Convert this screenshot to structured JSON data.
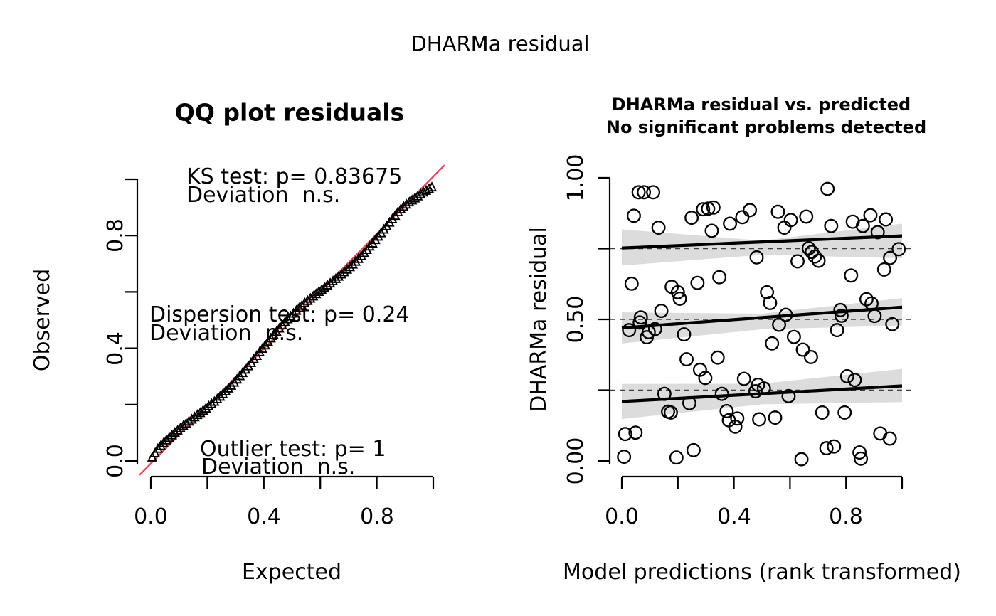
{
  "figure": {
    "title": "DHARMa residual",
    "background_color": "#ffffff",
    "text_color": "#000000"
  },
  "panels": {
    "qq": {
      "title": "QQ plot residuals",
      "xlabel": "Expected",
      "ylabel": "Observed",
      "x_tick_labels": [
        "0.0",
        "0.4",
        "0.8"
      ],
      "y_tick_labels": [
        "0.0",
        "0.4",
        "0.8"
      ],
      "ref_line_color": "#e8465f",
      "annotations": {
        "ks_line1": "KS test: p= 0.83675",
        "ks_line2": "Deviation  n.s.",
        "dispersion_line1": "Dispersion test: p= 0.24",
        "dispersion_line2": "Deviation  n.s.",
        "outlier_line1": "Outlier test: p= 1",
        "outlier_line2": "Deviation  n.s."
      }
    },
    "residual": {
      "title_line1": "DHARMa residual vs. predicted",
      "title_line2": "No significant problems detected",
      "xlabel": "Model predictions (rank transformed)",
      "ylabel": "DHARMa residual",
      "x_tick_labels": [
        "0.0",
        "0.4",
        "0.8"
      ],
      "y_tick_labels": [
        "0.00",
        "0.50",
        "1.00"
      ],
      "band_color": "#dcdcdc",
      "quantile_line_color": "#000000",
      "dashed_line_color": "#404040"
    }
  },
  "chart_data": [
    {
      "type": "scatter",
      "panel": "qq",
      "title": "QQ plot residuals",
      "xlabel": "Expected",
      "ylabel": "Observed",
      "xlim": [
        0,
        1
      ],
      "ylim": [
        0,
        1
      ],
      "x_ticks": [
        0,
        0.2,
        0.4,
        0.6,
        0.8,
        1.0
      ],
      "y_ticks": [
        0,
        0.2,
        0.4,
        0.6,
        0.8,
        1.0
      ],
      "labeled_x_ticks": [
        0.0,
        0.4,
        0.8
      ],
      "labeled_y_ticks": [
        0.0,
        0.4,
        0.8
      ],
      "marker": "open-triangle",
      "reference_line": {
        "from": [
          -0.04,
          -0.05
        ],
        "to": [
          1.04,
          1.05
        ],
        "color": "#e8465f"
      },
      "tests": {
        "ks_p": 0.83675,
        "dispersion_p": 0.24,
        "outlier_p": 1,
        "deviation": "n.s."
      },
      "points": [
        [
          0.005,
          0.012
        ],
        [
          0.015,
          0.027
        ],
        [
          0.025,
          0.043
        ],
        [
          0.035,
          0.053
        ],
        [
          0.045,
          0.063
        ],
        [
          0.055,
          0.073
        ],
        [
          0.065,
          0.082
        ],
        [
          0.075,
          0.091
        ],
        [
          0.085,
          0.1
        ],
        [
          0.095,
          0.108
        ],
        [
          0.105,
          0.116
        ],
        [
          0.115,
          0.124
        ],
        [
          0.125,
          0.132
        ],
        [
          0.135,
          0.14
        ],
        [
          0.145,
          0.147
        ],
        [
          0.155,
          0.155
        ],
        [
          0.165,
          0.163
        ],
        [
          0.175,
          0.17
        ],
        [
          0.185,
          0.178
        ],
        [
          0.195,
          0.186
        ],
        [
          0.205,
          0.194
        ],
        [
          0.215,
          0.202
        ],
        [
          0.225,
          0.21
        ],
        [
          0.235,
          0.219
        ],
        [
          0.245,
          0.228
        ],
        [
          0.255,
          0.237
        ],
        [
          0.265,
          0.247
        ],
        [
          0.275,
          0.257
        ],
        [
          0.285,
          0.267
        ],
        [
          0.295,
          0.278
        ],
        [
          0.305,
          0.289
        ],
        [
          0.315,
          0.301
        ],
        [
          0.325,
          0.312
        ],
        [
          0.335,
          0.324
        ],
        [
          0.345,
          0.336
        ],
        [
          0.355,
          0.348
        ],
        [
          0.365,
          0.361
        ],
        [
          0.375,
          0.373
        ],
        [
          0.385,
          0.386
        ],
        [
          0.395,
          0.398
        ],
        [
          0.405,
          0.41
        ],
        [
          0.415,
          0.423
        ],
        [
          0.425,
          0.435
        ],
        [
          0.435,
          0.447
        ],
        [
          0.445,
          0.458
        ],
        [
          0.455,
          0.47
        ],
        [
          0.465,
          0.481
        ],
        [
          0.475,
          0.492
        ],
        [
          0.485,
          0.503
        ],
        [
          0.495,
          0.513
        ],
        [
          0.505,
          0.523
        ],
        [
          0.515,
          0.533
        ],
        [
          0.525,
          0.542
        ],
        [
          0.535,
          0.551
        ],
        [
          0.545,
          0.56
        ],
        [
          0.555,
          0.568
        ],
        [
          0.565,
          0.576
        ],
        [
          0.575,
          0.584
        ],
        [
          0.585,
          0.592
        ],
        [
          0.595,
          0.6
        ],
        [
          0.605,
          0.607
        ],
        [
          0.615,
          0.615
        ],
        [
          0.625,
          0.623
        ],
        [
          0.635,
          0.63
        ],
        [
          0.645,
          0.638
        ],
        [
          0.655,
          0.646
        ],
        [
          0.665,
          0.654
        ],
        [
          0.675,
          0.662
        ],
        [
          0.685,
          0.67
        ],
        [
          0.695,
          0.679
        ],
        [
          0.705,
          0.688
        ],
        [
          0.715,
          0.697
        ],
        [
          0.725,
          0.707
        ],
        [
          0.735,
          0.717
        ],
        [
          0.745,
          0.727
        ],
        [
          0.755,
          0.738
        ],
        [
          0.765,
          0.749
        ],
        [
          0.775,
          0.761
        ],
        [
          0.785,
          0.772
        ],
        [
          0.795,
          0.784
        ],
        [
          0.805,
          0.796
        ],
        [
          0.815,
          0.808
        ],
        [
          0.825,
          0.821
        ],
        [
          0.835,
          0.833
        ],
        [
          0.845,
          0.846
        ],
        [
          0.855,
          0.858
        ],
        [
          0.865,
          0.87
        ],
        [
          0.875,
          0.883
        ],
        [
          0.885,
          0.893
        ],
        [
          0.895,
          0.902
        ],
        [
          0.905,
          0.91
        ],
        [
          0.915,
          0.918
        ],
        [
          0.925,
          0.925
        ],
        [
          0.935,
          0.932
        ],
        [
          0.945,
          0.939
        ],
        [
          0.955,
          0.946
        ],
        [
          0.965,
          0.953
        ],
        [
          0.975,
          0.959
        ],
        [
          0.985,
          0.965
        ],
        [
          0.995,
          0.971
        ]
      ]
    },
    {
      "type": "scatter",
      "panel": "residual",
      "title": "DHARMa residual vs. predicted",
      "subtitle": "No significant problems detected",
      "xlabel": "Model predictions (rank transformed)",
      "ylabel": "DHARMa residual",
      "xlim": [
        0,
        1
      ],
      "ylim": [
        0,
        1
      ],
      "x_ticks": [
        0,
        0.2,
        0.4,
        0.6,
        0.8,
        1.0
      ],
      "y_ticks": [
        0,
        0.25,
        0.5,
        0.75,
        1.0
      ],
      "labeled_x_ticks": [
        0.0,
        0.4,
        0.8
      ],
      "labeled_y_ticks": [
        0.0,
        0.5,
        1.0
      ],
      "marker": "open-circle",
      "dashed_hlines": [
        0.25,
        0.5,
        0.75
      ],
      "quantile_lines": [
        {
          "q": 0.75,
          "start": 0.752,
          "end": 0.795
        },
        {
          "q": 0.5,
          "start": 0.47,
          "end": 0.543
        },
        {
          "q": 0.25,
          "start": 0.21,
          "end": 0.265
        }
      ],
      "confidence_bands": [
        {
          "q": 0.75,
          "top": [
            [
              0,
              0.818
            ],
            [
              0.5,
              0.778
            ],
            [
              1,
              0.838
            ]
          ],
          "bottom": [
            [
              0,
              0.69
            ],
            [
              0.5,
              0.728
            ],
            [
              1,
              0.716
            ]
          ]
        },
        {
          "q": 0.5,
          "top": [
            [
              0,
              0.525
            ],
            [
              0.5,
              0.52
            ],
            [
              1,
              0.575
            ]
          ],
          "bottom": [
            [
              0,
              0.415
            ],
            [
              0.5,
              0.465
            ],
            [
              1,
              0.478
            ]
          ]
        },
        {
          "q": 0.25,
          "top": [
            [
              0,
              0.272
            ],
            [
              0.5,
              0.273
            ],
            [
              1,
              0.325
            ]
          ],
          "bottom": [
            [
              0,
              0.148
            ],
            [
              0.5,
              0.2
            ],
            [
              1,
              0.208
            ]
          ]
        }
      ],
      "points": [
        [
          0.06,
          0.949
        ],
        [
          0.079,
          0.949
        ],
        [
          0.112,
          0.949
        ],
        [
          0.043,
          0.866
        ],
        [
          0.131,
          0.824
        ],
        [
          0.249,
          0.859
        ],
        [
          0.29,
          0.889
        ],
        [
          0.308,
          0.891
        ],
        [
          0.327,
          0.895
        ],
        [
          0.321,
          0.813
        ],
        [
          0.386,
          0.838
        ],
        [
          0.43,
          0.861
        ],
        [
          0.457,
          0.886
        ],
        [
          0.557,
          0.88
        ],
        [
          0.58,
          0.824
        ],
        [
          0.603,
          0.851
        ],
        [
          0.658,
          0.863
        ],
        [
          0.734,
          0.961
        ],
        [
          0.747,
          0.83
        ],
        [
          0.824,
          0.845
        ],
        [
          0.86,
          0.83
        ],
        [
          0.887,
          0.868
        ],
        [
          0.913,
          0.808
        ],
        [
          0.942,
          0.853
        ],
        [
          0.667,
          0.751
        ],
        [
          0.678,
          0.738
        ],
        [
          0.689,
          0.722
        ],
        [
          0.702,
          0.707
        ],
        [
          0.627,
          0.705
        ],
        [
          0.818,
          0.655
        ],
        [
          0.936,
          0.676
        ],
        [
          0.957,
          0.717
        ],
        [
          0.988,
          0.748
        ],
        [
          0.481,
          0.719
        ],
        [
          0.035,
          0.626
        ],
        [
          0.178,
          0.615
        ],
        [
          0.2,
          0.596
        ],
        [
          0.207,
          0.573
        ],
        [
          0.27,
          0.629
        ],
        [
          0.348,
          0.649
        ],
        [
          0.518,
          0.596
        ],
        [
          0.529,
          0.558
        ],
        [
          0.585,
          0.516
        ],
        [
          0.78,
          0.533
        ],
        [
          0.784,
          0.513
        ],
        [
          0.873,
          0.571
        ],
        [
          0.891,
          0.556
        ],
        [
          0.902,
          0.512
        ],
        [
          0.068,
          0.507
        ],
        [
          0.141,
          0.53
        ],
        [
          0.026,
          0.462
        ],
        [
          0.064,
          0.489
        ],
        [
          0.089,
          0.437
        ],
        [
          0.096,
          0.455
        ],
        [
          0.119,
          0.466
        ],
        [
          0.222,
          0.447
        ],
        [
          0.561,
          0.481
        ],
        [
          0.768,
          0.462
        ],
        [
          0.965,
          0.483
        ],
        [
          0.231,
          0.359
        ],
        [
          0.279,
          0.322
        ],
        [
          0.298,
          0.293
        ],
        [
          0.342,
          0.365
        ],
        [
          0.436,
          0.29
        ],
        [
          0.536,
          0.415
        ],
        [
          0.614,
          0.438
        ],
        [
          0.646,
          0.393
        ],
        [
          0.675,
          0.367
        ],
        [
          0.804,
          0.299
        ],
        [
          0.831,
          0.286
        ],
        [
          0.152,
          0.237
        ],
        [
          0.241,
          0.204
        ],
        [
          0.165,
          0.174
        ],
        [
          0.175,
          0.171
        ],
        [
          0.357,
          0.237
        ],
        [
          0.374,
          0.176
        ],
        [
          0.382,
          0.144
        ],
        [
          0.405,
          0.121
        ],
        [
          0.412,
          0.15
        ],
        [
          0.477,
          0.246
        ],
        [
          0.486,
          0.269
        ],
        [
          0.507,
          0.256
        ],
        [
          0.595,
          0.229
        ],
        [
          0.715,
          0.171
        ],
        [
          0.795,
          0.171
        ],
        [
          0.49,
          0.147
        ],
        [
          0.547,
          0.153
        ],
        [
          0.012,
          0.095
        ],
        [
          0.049,
          0.1
        ],
        [
          0.922,
          0.097
        ],
        [
          0.956,
          0.079
        ],
        [
          0.73,
          0.045
        ],
        [
          0.757,
          0.051
        ],
        [
          0.848,
          0.03
        ],
        [
          0.853,
          0.008
        ],
        [
          0.008,
          0.015
        ],
        [
          0.195,
          0.012
        ],
        [
          0.256,
          0.038
        ],
        [
          0.641,
          0.006
        ]
      ]
    }
  ]
}
